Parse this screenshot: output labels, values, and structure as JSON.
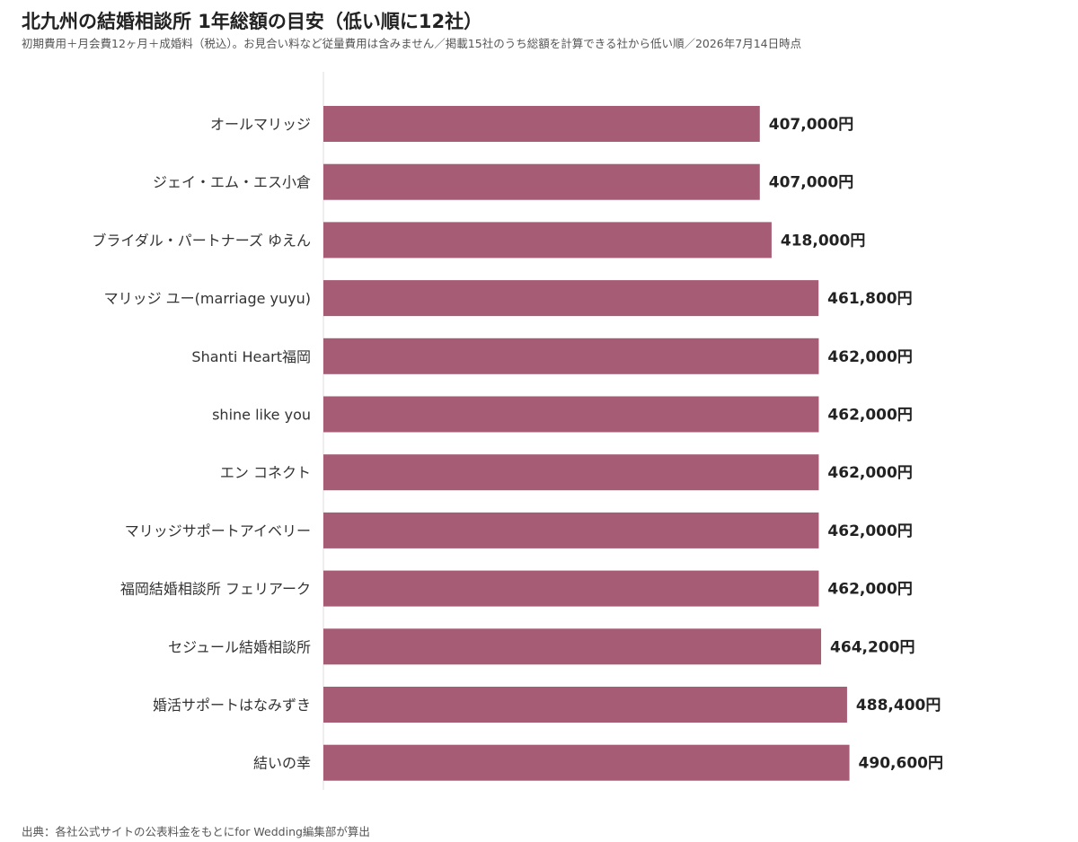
{
  "title": "北九州の結婚相談所 1年総額の目安（低い順に12社）",
  "subtitle": "初期費用＋月会費12ヶ月＋成婚料（税込）。お見合い料など従量費用は含みません／掲載15社のうち総額を計算できる社から低い順／2026年7月14日時点",
  "source": "出典：各社公式サイトの公表料金をもとにfor Wedding編集部が算出",
  "colors": {
    "bar": "#a55c74",
    "axis": "#dddddd"
  },
  "chart_data": {
    "type": "bar",
    "orientation": "horizontal",
    "categories": [
      "オールマリッジ",
      "ジェイ・エム・エス小倉",
      "ブライダル・パートナーズ ゆえん",
      "マリッジ ユー(marriage yuyu)",
      "Shanti Heart福岡",
      "shine like you",
      "エン コネクト",
      "マリッジサポートアイベリー",
      "福岡結婚相談所 フェリアーク",
      "セジュール結婚相談所",
      "婚活サポートはなみずき",
      "結いの幸"
    ],
    "values": [
      407000,
      407000,
      418000,
      461800,
      462000,
      462000,
      462000,
      462000,
      462000,
      464200,
      488400,
      490600
    ],
    "value_labels": [
      "407,000円",
      "407,000円",
      "418,000円",
      "461,800円",
      "462,000円",
      "462,000円",
      "462,000円",
      "462,000円",
      "462,000円",
      "464,200円",
      "488,400円",
      "490,600円"
    ],
    "xlim": [
      0,
      620000
    ],
    "grid": false,
    "legend": "none"
  }
}
